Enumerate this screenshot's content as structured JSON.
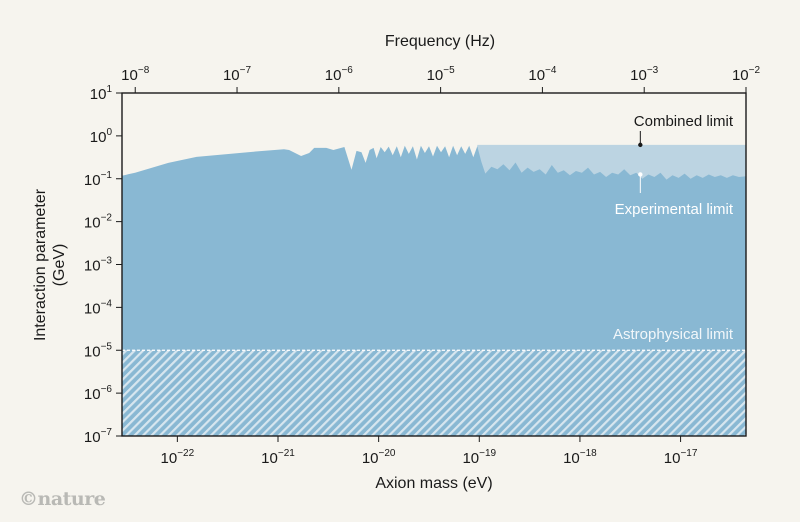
{
  "chart_data": {
    "type": "area",
    "title": "",
    "xlabel": "Axion mass (eV)",
    "x2label": "Frequency (Hz)",
    "ylabel": [
      "Interaction parameter",
      "(GeV)"
    ],
    "x_scale": "log",
    "y_scale": "log",
    "xlim_log10": [
      -22.55,
      -16.35
    ],
    "x2lim_log10": [
      -8.13,
      -2.0
    ],
    "ylim_log10": [
      -7,
      1
    ],
    "x_ticks": [
      {
        "exp": -22,
        "label": "10",
        "sup": "−22"
      },
      {
        "exp": -21,
        "label": "10",
        "sup": "−21"
      },
      {
        "exp": -20,
        "label": "10",
        "sup": "−20"
      },
      {
        "exp": -19,
        "label": "10",
        "sup": "−19"
      },
      {
        "exp": -18,
        "label": "10",
        "sup": "−18"
      },
      {
        "exp": -17,
        "label": "10",
        "sup": "−17"
      }
    ],
    "x2_ticks": [
      {
        "exp": -8,
        "label": "10",
        "sup": "−8"
      },
      {
        "exp": -7,
        "label": "10",
        "sup": "−7"
      },
      {
        "exp": -6,
        "label": "10",
        "sup": "−6"
      },
      {
        "exp": -5,
        "label": "10",
        "sup": "−5"
      },
      {
        "exp": -4,
        "label": "10",
        "sup": "−4"
      },
      {
        "exp": -3,
        "label": "10",
        "sup": "−3"
      },
      {
        "exp": -2,
        "label": "10",
        "sup": "−2"
      }
    ],
    "y_ticks": [
      {
        "exp": 1,
        "label": "10",
        "sup": "1"
      },
      {
        "exp": 0,
        "label": "10",
        "sup": "0"
      },
      {
        "exp": -1,
        "label": "10",
        "sup": "−1"
      },
      {
        "exp": -2,
        "label": "10",
        "sup": "−2"
      },
      {
        "exp": -3,
        "label": "10",
        "sup": "−3"
      },
      {
        "exp": -4,
        "label": "10",
        "sup": "−4"
      },
      {
        "exp": -5,
        "label": "10",
        "sup": "−5"
      },
      {
        "exp": -6,
        "label": "10",
        "sup": "−6"
      },
      {
        "exp": -7,
        "label": "10",
        "sup": "−7"
      }
    ],
    "series": [
      {
        "name": "Experimental limit",
        "color": "#89b8d3",
        "points_log10": [
          [
            -22.55,
            -0.93
          ],
          [
            -22.42,
            -0.86
          ],
          [
            -22.09,
            -0.63
          ],
          [
            -21.81,
            -0.49
          ],
          [
            -21.3,
            -0.38
          ],
          [
            -20.94,
            -0.31
          ],
          [
            -20.89,
            -0.33
          ],
          [
            -20.77,
            -0.47
          ],
          [
            -20.69,
            -0.4
          ],
          [
            -20.64,
            -0.28
          ],
          [
            -20.52,
            -0.28
          ],
          [
            -20.45,
            -0.33
          ],
          [
            -20.34,
            -0.26
          ],
          [
            -20.27,
            -0.79
          ],
          [
            -20.22,
            -0.35
          ],
          [
            -20.17,
            -0.38
          ],
          [
            -20.13,
            -0.63
          ],
          [
            -20.09,
            -0.33
          ],
          [
            -20.05,
            -0.28
          ],
          [
            -20.02,
            -0.52
          ],
          [
            -19.98,
            -0.26
          ],
          [
            -19.94,
            -0.38
          ],
          [
            -19.9,
            -0.25
          ],
          [
            -19.86,
            -0.45
          ],
          [
            -19.82,
            -0.24
          ],
          [
            -19.78,
            -0.5
          ],
          [
            -19.74,
            -0.23
          ],
          [
            -19.7,
            -0.42
          ],
          [
            -19.66,
            -0.24
          ],
          [
            -19.62,
            -0.55
          ],
          [
            -19.58,
            -0.23
          ],
          [
            -19.54,
            -0.4
          ],
          [
            -19.5,
            -0.24
          ],
          [
            -19.46,
            -0.48
          ],
          [
            -19.42,
            -0.23
          ],
          [
            -19.38,
            -0.38
          ],
          [
            -19.34,
            -0.24
          ],
          [
            -19.3,
            -0.5
          ],
          [
            -19.26,
            -0.23
          ],
          [
            -19.22,
            -0.45
          ],
          [
            -19.18,
            -0.24
          ],
          [
            -19.14,
            -0.42
          ],
          [
            -19.1,
            -0.23
          ],
          [
            -19.06,
            -0.5
          ],
          [
            -19.02,
            -0.24
          ],
          [
            -18.98,
            -0.6
          ],
          [
            -18.94,
            -0.88
          ],
          [
            -18.88,
            -0.72
          ],
          [
            -18.82,
            -0.78
          ],
          [
            -18.76,
            -0.66
          ],
          [
            -18.7,
            -0.8
          ],
          [
            -18.64,
            -0.62
          ],
          [
            -18.58,
            -0.86
          ],
          [
            -18.52,
            -0.74
          ],
          [
            -18.46,
            -0.84
          ],
          [
            -18.4,
            -0.78
          ],
          [
            -18.34,
            -0.9
          ],
          [
            -18.28,
            -0.68
          ],
          [
            -18.22,
            -0.86
          ],
          [
            -18.16,
            -0.8
          ],
          [
            -18.1,
            -0.92
          ],
          [
            -18.04,
            -0.82
          ],
          [
            -17.98,
            -0.86
          ],
          [
            -17.92,
            -0.74
          ],
          [
            -17.86,
            -0.9
          ],
          [
            -17.8,
            -0.84
          ],
          [
            -17.74,
            -0.96
          ],
          [
            -17.68,
            -0.86
          ],
          [
            -17.62,
            -0.9
          ],
          [
            -17.56,
            -0.78
          ],
          [
            -17.5,
            -0.92
          ],
          [
            -17.44,
            -0.86
          ],
          [
            -17.38,
            -1.0
          ],
          [
            -17.32,
            -0.9
          ],
          [
            -17.26,
            -0.96
          ],
          [
            -17.2,
            -0.86
          ],
          [
            -17.14,
            -1.02
          ],
          [
            -17.08,
            -0.92
          ],
          [
            -17.02,
            -0.98
          ],
          [
            -16.96,
            -0.88
          ],
          [
            -16.9,
            -1.0
          ],
          [
            -16.84,
            -0.92
          ],
          [
            -16.78,
            -0.98
          ],
          [
            -16.72,
            -0.9
          ],
          [
            -16.66,
            -0.96
          ],
          [
            -16.6,
            -0.92
          ],
          [
            -16.54,
            -0.98
          ],
          [
            -16.48,
            -0.92
          ],
          [
            -16.42,
            -0.96
          ],
          [
            -16.35,
            -0.94
          ]
        ]
      },
      {
        "name": "Combined limit",
        "color": "#bcd4e2",
        "points_log10": [
          [
            -19.02,
            -0.21
          ],
          [
            -16.35,
            -0.21
          ]
        ]
      },
      {
        "name": "Astrophysical limit",
        "color": "#89b8d3",
        "value_log10": -5
      }
    ],
    "annotations": [
      {
        "text": "Combined limit",
        "marker_log10": [
          -17.4,
          -0.21
        ],
        "color": "#1a1a1a"
      },
      {
        "text": "Experimental limit",
        "marker_log10": [
          -17.4,
          -0.9
        ],
        "color": "#ffffff"
      },
      {
        "text": "Astrophysical limit",
        "color": "#ffffff"
      }
    ],
    "grid": false
  },
  "credit": "©nature"
}
